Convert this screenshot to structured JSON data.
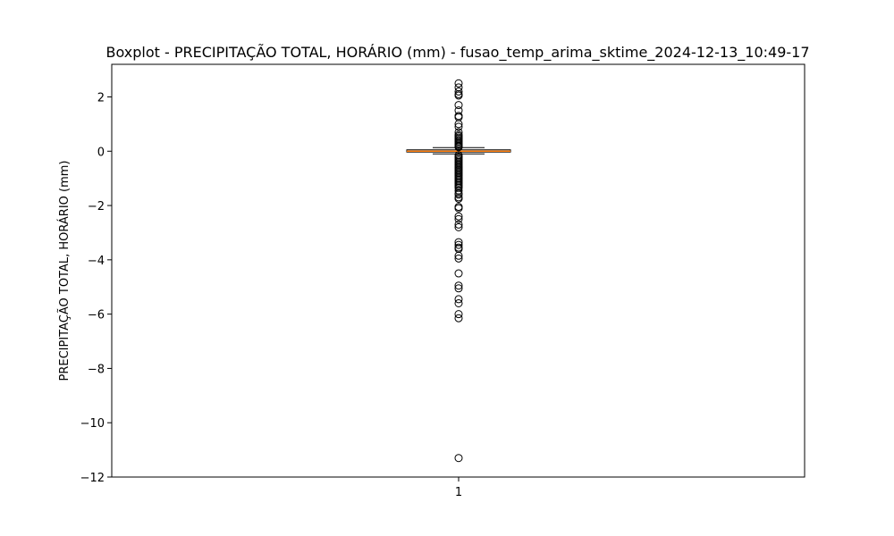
{
  "chart_data": {
    "type": "boxplot",
    "title": "Boxplot - PRECIPITAÇÃO TOTAL, HORÁRIO (mm) - fusao_temp_arima_sktime_2024-12-13_10:49-17",
    "xlabel": "",
    "ylabel": "PRECIPITAÇÃO TOTAL, HORÁRIO (mm)",
    "ylim": [
      -12,
      3.2
    ],
    "yticks": [
      -12,
      -10,
      -8,
      -6,
      -4,
      -2,
      0,
      2
    ],
    "ytick_labels": [
      "−12",
      "−10",
      "−8",
      "−6",
      "−4",
      "−2",
      "0",
      "2"
    ],
    "categories": [
      "1"
    ],
    "box": {
      "q1": -0.03,
      "median": 0.0,
      "q3": 0.05,
      "whisker_low": -0.1,
      "whisker_high": 0.13
    },
    "outliers": [
      2.5,
      2.35,
      2.2,
      2.1,
      2.05,
      1.7,
      1.5,
      1.3,
      1.25,
      1.0,
      0.9,
      0.7,
      0.6,
      0.55,
      0.5,
      0.45,
      0.4,
      0.35,
      0.3,
      0.25,
      0.2,
      0.18,
      0.15,
      -0.15,
      -0.2,
      -0.25,
      -0.3,
      -0.35,
      -0.4,
      -0.45,
      -0.5,
      -0.55,
      -0.6,
      -0.65,
      -0.7,
      -0.75,
      -0.8,
      -0.85,
      -0.9,
      -0.95,
      -1.0,
      -1.05,
      -1.1,
      -1.15,
      -1.2,
      -1.25,
      -1.3,
      -1.35,
      -1.45,
      -1.55,
      -1.6,
      -1.7,
      -1.75,
      -2.05,
      -2.1,
      -2.4,
      -2.5,
      -2.7,
      -2.8,
      -3.35,
      -3.45,
      -3.55,
      -3.6,
      -3.85,
      -3.95,
      -4.5,
      -4.95,
      -5.05,
      -5.45,
      -5.6,
      -6.0,
      -6.15,
      -11.3
    ],
    "colors": {
      "box_edge": "#000000",
      "median": "#ff7f0e",
      "flier_edge": "#000000",
      "background": "#ffffff"
    },
    "grid": false
  }
}
